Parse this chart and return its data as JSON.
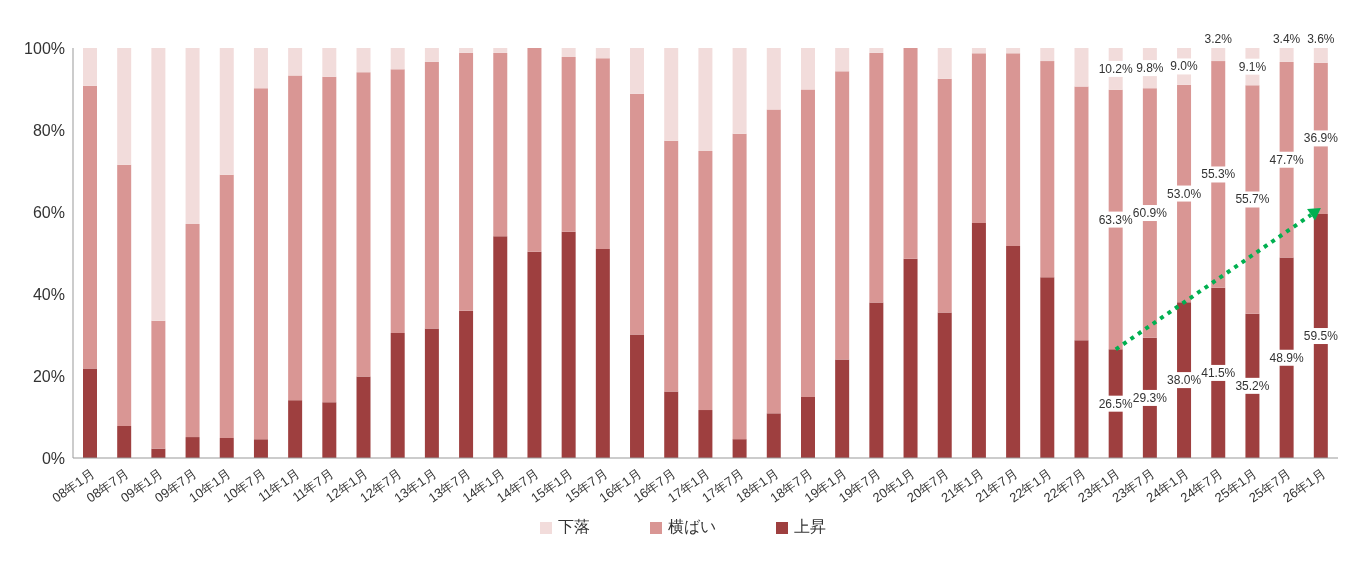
{
  "chart_data": {
    "type": "bar",
    "stacked": true,
    "legend": "bottom",
    "grid": false,
    "categories": [
      "08年1月",
      "08年7月",
      "09年1月",
      "09年7月",
      "10年1月",
      "10年7月",
      "11年1月",
      "11年7月",
      "12年1月",
      "12年7月",
      "13年1月",
      "13年7月",
      "14年1月",
      "14年7月",
      "15年1月",
      "15年7月",
      "16年1月",
      "16年7月",
      "17年1月",
      "17年7月",
      "18年1月",
      "18年7月",
      "19年1月",
      "19年7月",
      "20年1月",
      "20年7月",
      "21年1月",
      "21年7月",
      "22年1月",
      "22年7月",
      "23年1月",
      "23年7月",
      "24年1月",
      "24年7月",
      "25年1月",
      "25年7月",
      "26年1月"
    ],
    "ylim": [
      0,
      100
    ],
    "yticks": [
      {
        "value": 0,
        "label": "0%"
      },
      {
        "value": 20,
        "label": "20%"
      },
      {
        "value": 40,
        "label": "40%"
      },
      {
        "value": 60,
        "label": "60%"
      },
      {
        "value": 80,
        "label": "80%"
      },
      {
        "value": 100,
        "label": "100%"
      }
    ],
    "series": [
      {
        "name": "上昇",
        "color": "#9e3f3f",
        "values": [
          21.8,
          7.8,
          2.3,
          5.1,
          4.9,
          4.6,
          14.1,
          13.6,
          19.9,
          30.5,
          31.6,
          35.9,
          54.1,
          50.3,
          55.2,
          51.0,
          30.1,
          16.2,
          11.7,
          4.6,
          10.9,
          14.9,
          24.0,
          37.9,
          48.6,
          35.5,
          57.3,
          51.7,
          44.1,
          28.7,
          26.5,
          29.3,
          38.0,
          41.5,
          35.2,
          48.9,
          59.5
        ],
        "value_labels": [
          null,
          null,
          null,
          null,
          null,
          null,
          null,
          null,
          null,
          null,
          null,
          null,
          null,
          null,
          null,
          null,
          null,
          null,
          null,
          null,
          null,
          null,
          null,
          null,
          null,
          null,
          null,
          null,
          null,
          null,
          "26.5%",
          "29.3%",
          "38.0%",
          "41.5%",
          "35.2%",
          "48.9%",
          "59.5%"
        ]
      },
      {
        "name": "横ばい",
        "color": "#d99694",
        "values": [
          69.0,
          63.7,
          31.2,
          52.0,
          64.2,
          85.6,
          79.2,
          79.4,
          74.2,
          64.3,
          65.0,
          62.9,
          44.7,
          49.7,
          42.6,
          46.5,
          58.7,
          61.2,
          63.2,
          74.5,
          74.1,
          75.0,
          70.3,
          60.9,
          51.4,
          57.0,
          41.4,
          47.0,
          52.7,
          61.9,
          63.3,
          60.9,
          53.0,
          55.3,
          55.7,
          47.7,
          36.9
        ],
        "value_labels": [
          null,
          null,
          null,
          null,
          null,
          null,
          null,
          null,
          null,
          null,
          null,
          null,
          null,
          null,
          null,
          null,
          null,
          null,
          null,
          null,
          null,
          null,
          null,
          null,
          null,
          null,
          null,
          null,
          null,
          null,
          "63.3%",
          "60.9%",
          "53.0%",
          "55.3%",
          "55.7%",
          "47.7%",
          "36.9%"
        ]
      },
      {
        "name": "下落",
        "color": "#f2dcdb",
        "values": [
          9.2,
          28.5,
          66.5,
          42.9,
          30.9,
          9.8,
          6.7,
          7.0,
          5.9,
          5.2,
          3.4,
          1.2,
          1.2,
          0,
          2.2,
          2.5,
          11.2,
          22.6,
          25.1,
          20.9,
          15.0,
          10.1,
          5.7,
          1.2,
          0,
          7.5,
          1.3,
          1.3,
          3.2,
          9.4,
          10.2,
          9.8,
          9.0,
          3.2,
          9.1,
          3.4,
          3.6
        ],
        "value_labels": [
          null,
          null,
          null,
          null,
          null,
          null,
          null,
          null,
          null,
          null,
          null,
          null,
          null,
          null,
          null,
          null,
          null,
          null,
          null,
          null,
          null,
          null,
          null,
          null,
          null,
          null,
          null,
          null,
          null,
          null,
          "10.2%",
          "9.8%",
          "9.0%",
          "3.2%",
          "9.1%",
          "3.4%",
          "3.6%"
        ]
      }
    ]
  }
}
